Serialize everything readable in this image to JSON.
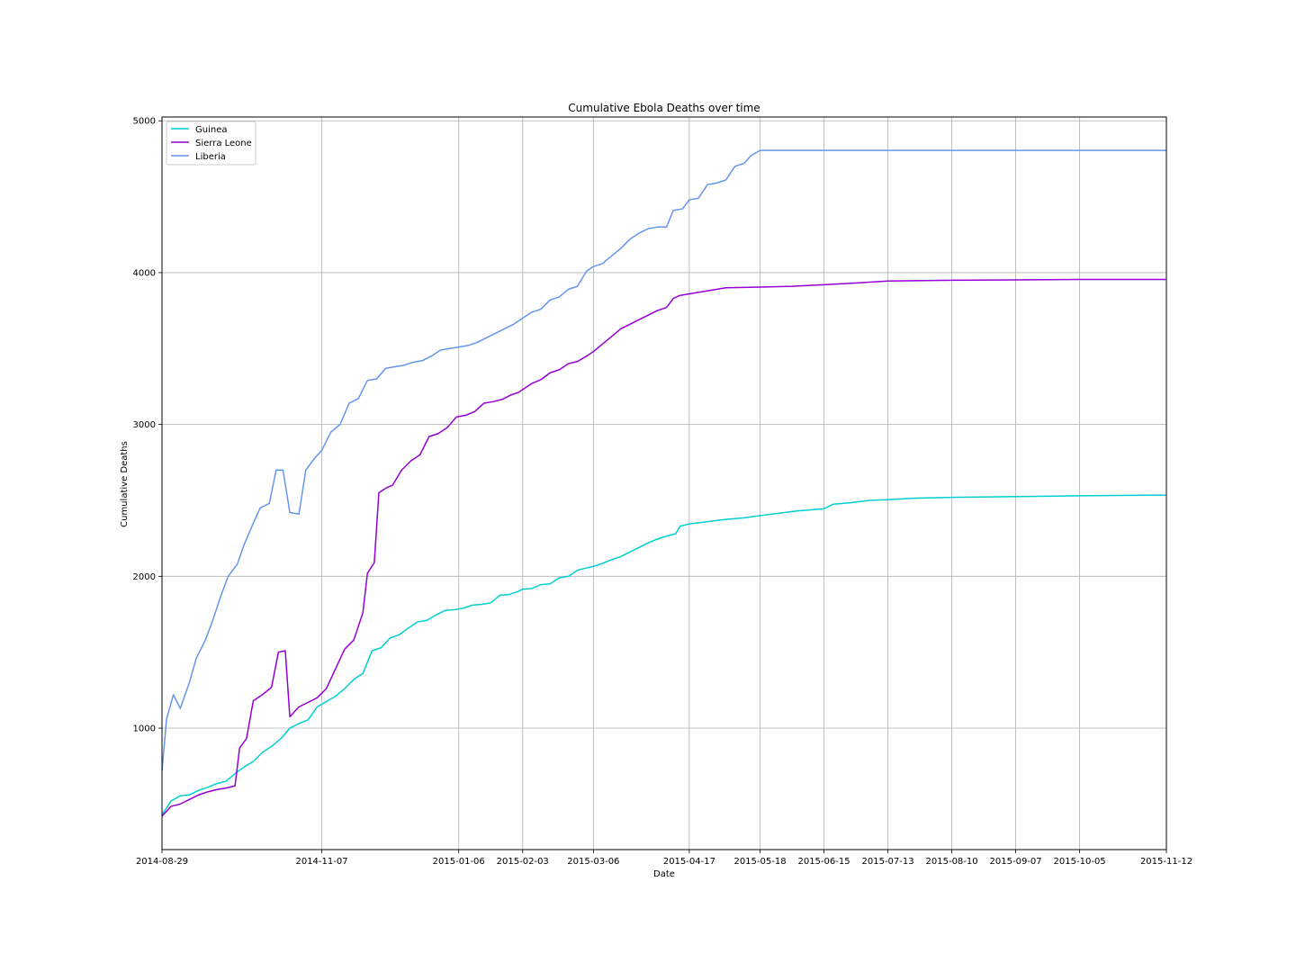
{
  "chart_data": {
    "type": "line",
    "title": "Cumulative Ebola Deaths over time",
    "xlabel": "Date",
    "ylabel": "Cumulative Deaths",
    "x_ticks": [
      "2014-08-29",
      "2014-11-07",
      "2015-01-06",
      "2015-02-03",
      "2015-03-06",
      "2015-04-17",
      "2015-05-18",
      "2015-06-15",
      "2015-07-13",
      "2015-08-10",
      "2015-09-07",
      "2015-10-05",
      "2015-11-12"
    ],
    "y_ticks": [
      1000,
      2000,
      3000,
      4000,
      5000
    ],
    "xlim": [
      "2014-08-29",
      "2015-11-12"
    ],
    "ylim": [
      200,
      5025
    ],
    "grid": true,
    "legend_position": "upper-left",
    "series": [
      {
        "name": "Guinea",
        "color": "#00CED1",
        "points": [
          [
            "2014-08-29",
            430
          ],
          [
            "2014-09-02",
            520
          ],
          [
            "2014-09-06",
            555
          ],
          [
            "2014-09-10",
            560
          ],
          [
            "2014-09-14",
            590
          ],
          [
            "2014-09-18",
            610
          ],
          [
            "2014-09-22",
            635
          ],
          [
            "2014-09-26",
            650
          ],
          [
            "2014-09-30",
            700
          ],
          [
            "2014-10-04",
            745
          ],
          [
            "2014-10-08",
            780
          ],
          [
            "2014-10-12",
            840
          ],
          [
            "2014-10-16",
            880
          ],
          [
            "2014-10-20",
            930
          ],
          [
            "2014-10-24",
            1000
          ],
          [
            "2014-10-28",
            1030
          ],
          [
            "2014-11-01",
            1055
          ],
          [
            "2014-11-05",
            1140
          ],
          [
            "2014-11-09",
            1175
          ],
          [
            "2014-11-13",
            1210
          ],
          [
            "2014-11-17",
            1260
          ],
          [
            "2014-11-21",
            1320
          ],
          [
            "2014-11-25",
            1360
          ],
          [
            "2014-11-29",
            1510
          ],
          [
            "2014-12-03",
            1530
          ],
          [
            "2014-12-07",
            1595
          ],
          [
            "2014-12-11",
            1615
          ],
          [
            "2014-12-15",
            1660
          ],
          [
            "2014-12-19",
            1700
          ],
          [
            "2014-12-23",
            1710
          ],
          [
            "2014-12-27",
            1745
          ],
          [
            "2014-12-31",
            1775
          ],
          [
            "2015-01-04",
            1780
          ],
          [
            "2015-01-08",
            1790
          ],
          [
            "2015-01-12",
            1810
          ],
          [
            "2015-01-16",
            1815
          ],
          [
            "2015-01-20",
            1825
          ],
          [
            "2015-01-24",
            1875
          ],
          [
            "2015-01-28",
            1880
          ],
          [
            "2015-02-01",
            1900
          ],
          [
            "2015-02-03",
            1915
          ],
          [
            "2015-02-07",
            1920
          ],
          [
            "2015-02-11",
            1945
          ],
          [
            "2015-02-15",
            1950
          ],
          [
            "2015-02-19",
            1990
          ],
          [
            "2015-02-23",
            2000
          ],
          [
            "2015-02-27",
            2040
          ],
          [
            "2015-03-03",
            2055
          ],
          [
            "2015-03-06",
            2065
          ],
          [
            "2015-03-10",
            2085
          ],
          [
            "2015-03-14",
            2110
          ],
          [
            "2015-03-18",
            2130
          ],
          [
            "2015-03-22",
            2160
          ],
          [
            "2015-03-26",
            2190
          ],
          [
            "2015-03-30",
            2220
          ],
          [
            "2015-04-03",
            2245
          ],
          [
            "2015-04-07",
            2265
          ],
          [
            "2015-04-11",
            2280
          ],
          [
            "2015-04-13",
            2330
          ],
          [
            "2015-04-17",
            2345
          ],
          [
            "2015-04-25",
            2360
          ],
          [
            "2015-05-03",
            2375
          ],
          [
            "2015-05-11",
            2385
          ],
          [
            "2015-05-18",
            2400
          ],
          [
            "2015-05-26",
            2415
          ],
          [
            "2015-06-03",
            2430
          ],
          [
            "2015-06-11",
            2440
          ],
          [
            "2015-06-15",
            2445
          ],
          [
            "2015-06-19",
            2475
          ],
          [
            "2015-06-27",
            2485
          ],
          [
            "2015-07-05",
            2500
          ],
          [
            "2015-07-13",
            2505
          ],
          [
            "2015-07-25",
            2515
          ],
          [
            "2015-08-10",
            2520
          ],
          [
            "2015-09-07",
            2525
          ],
          [
            "2015-10-05",
            2530
          ],
          [
            "2015-11-12",
            2535
          ]
        ]
      },
      {
        "name": "Sierra Leone",
        "color": "#9400D3",
        "points": [
          [
            "2014-08-29",
            420
          ],
          [
            "2014-09-02",
            485
          ],
          [
            "2014-09-06",
            500
          ],
          [
            "2014-09-10",
            530
          ],
          [
            "2014-09-14",
            560
          ],
          [
            "2014-09-18",
            580
          ],
          [
            "2014-09-22",
            595
          ],
          [
            "2014-09-26",
            605
          ],
          [
            "2014-09-30",
            620
          ],
          [
            "2014-10-02",
            870
          ],
          [
            "2014-10-05",
            930
          ],
          [
            "2014-10-08",
            1180
          ],
          [
            "2014-10-12",
            1220
          ],
          [
            "2014-10-16",
            1270
          ],
          [
            "2014-10-19",
            1500
          ],
          [
            "2014-10-22",
            1510
          ],
          [
            "2014-10-24",
            1075
          ],
          [
            "2014-10-28",
            1140
          ],
          [
            "2014-11-01",
            1170
          ],
          [
            "2014-11-05",
            1200
          ],
          [
            "2014-11-09",
            1260
          ],
          [
            "2014-11-13",
            1390
          ],
          [
            "2014-11-17",
            1520
          ],
          [
            "2014-11-21",
            1580
          ],
          [
            "2014-11-25",
            1760
          ],
          [
            "2014-11-27",
            2020
          ],
          [
            "2014-11-30",
            2090
          ],
          [
            "2014-12-02",
            2550
          ],
          [
            "2014-12-05",
            2580
          ],
          [
            "2014-12-08",
            2600
          ],
          [
            "2014-12-12",
            2700
          ],
          [
            "2014-12-16",
            2760
          ],
          [
            "2014-12-20",
            2800
          ],
          [
            "2014-12-24",
            2920
          ],
          [
            "2014-12-28",
            2940
          ],
          [
            "2015-01-01",
            2980
          ],
          [
            "2015-01-05",
            3050
          ],
          [
            "2015-01-09",
            3060
          ],
          [
            "2015-01-13",
            3085
          ],
          [
            "2015-01-17",
            3140
          ],
          [
            "2015-01-21",
            3150
          ],
          [
            "2015-01-25",
            3165
          ],
          [
            "2015-01-29",
            3195
          ],
          [
            "2015-02-01",
            3210
          ],
          [
            "2015-02-03",
            3230
          ],
          [
            "2015-02-07",
            3270
          ],
          [
            "2015-02-11",
            3295
          ],
          [
            "2015-02-15",
            3340
          ],
          [
            "2015-02-19",
            3360
          ],
          [
            "2015-02-23",
            3400
          ],
          [
            "2015-02-27",
            3415
          ],
          [
            "2015-03-03",
            3450
          ],
          [
            "2015-03-06",
            3480
          ],
          [
            "2015-03-10",
            3530
          ],
          [
            "2015-03-14",
            3580
          ],
          [
            "2015-03-18",
            3630
          ],
          [
            "2015-03-22",
            3660
          ],
          [
            "2015-03-26",
            3690
          ],
          [
            "2015-03-30",
            3720
          ],
          [
            "2015-04-03",
            3750
          ],
          [
            "2015-04-07",
            3770
          ],
          [
            "2015-04-10",
            3830
          ],
          [
            "2015-04-13",
            3850
          ],
          [
            "2015-04-17",
            3860
          ],
          [
            "2015-04-25",
            3880
          ],
          [
            "2015-05-03",
            3900
          ],
          [
            "2015-05-18",
            3905
          ],
          [
            "2015-06-01",
            3910
          ],
          [
            "2015-06-15",
            3920
          ],
          [
            "2015-06-27",
            3930
          ],
          [
            "2015-07-13",
            3945
          ],
          [
            "2015-08-10",
            3950
          ],
          [
            "2015-09-07",
            3952
          ],
          [
            "2015-10-05",
            3955
          ],
          [
            "2015-11-12",
            3955
          ]
        ]
      },
      {
        "name": "Liberia",
        "color": "#6495ED",
        "points": [
          [
            "2014-08-29",
            720
          ],
          [
            "2014-08-31",
            1060
          ],
          [
            "2014-09-03",
            1220
          ],
          [
            "2014-09-06",
            1130
          ],
          [
            "2014-09-10",
            1300
          ],
          [
            "2014-09-13",
            1460
          ],
          [
            "2014-09-17",
            1580
          ],
          [
            "2014-09-20",
            1700
          ],
          [
            "2014-09-24",
            1880
          ],
          [
            "2014-09-27",
            2000
          ],
          [
            "2014-10-01",
            2080
          ],
          [
            "2014-10-04",
            2210
          ],
          [
            "2014-10-08",
            2350
          ],
          [
            "2014-10-11",
            2450
          ],
          [
            "2014-10-15",
            2480
          ],
          [
            "2014-10-18",
            2700
          ],
          [
            "2014-10-21",
            2700
          ],
          [
            "2014-10-24",
            2420
          ],
          [
            "2014-10-28",
            2410
          ],
          [
            "2014-10-31",
            2700
          ],
          [
            "2014-11-04",
            2780
          ],
          [
            "2014-11-07",
            2830
          ],
          [
            "2014-11-11",
            2950
          ],
          [
            "2014-11-15",
            3000
          ],
          [
            "2014-11-19",
            3140
          ],
          [
            "2014-11-23",
            3170
          ],
          [
            "2014-11-27",
            3290
          ],
          [
            "2014-12-01",
            3300
          ],
          [
            "2014-12-05",
            3370
          ],
          [
            "2014-12-09",
            3380
          ],
          [
            "2014-12-13",
            3390
          ],
          [
            "2014-12-17",
            3410
          ],
          [
            "2014-12-21",
            3420
          ],
          [
            "2014-12-25",
            3450
          ],
          [
            "2014-12-29",
            3490
          ],
          [
            "2015-01-02",
            3500
          ],
          [
            "2015-01-06",
            3510
          ],
          [
            "2015-01-10",
            3520
          ],
          [
            "2015-01-14",
            3540
          ],
          [
            "2015-01-18",
            3570
          ],
          [
            "2015-01-22",
            3600
          ],
          [
            "2015-01-26",
            3630
          ],
          [
            "2015-01-30",
            3660
          ],
          [
            "2015-02-03",
            3700
          ],
          [
            "2015-02-07",
            3740
          ],
          [
            "2015-02-11",
            3760
          ],
          [
            "2015-02-15",
            3820
          ],
          [
            "2015-02-19",
            3840
          ],
          [
            "2015-02-23",
            3890
          ],
          [
            "2015-02-27",
            3910
          ],
          [
            "2015-03-03",
            4010
          ],
          [
            "2015-03-06",
            4040
          ],
          [
            "2015-03-10",
            4060
          ],
          [
            "2015-03-14",
            4110
          ],
          [
            "2015-03-18",
            4160
          ],
          [
            "2015-03-22",
            4220
          ],
          [
            "2015-03-26",
            4260
          ],
          [
            "2015-03-30",
            4290
          ],
          [
            "2015-04-03",
            4300
          ],
          [
            "2015-04-07",
            4300
          ],
          [
            "2015-04-10",
            4410
          ],
          [
            "2015-04-14",
            4420
          ],
          [
            "2015-04-17",
            4480
          ],
          [
            "2015-04-21",
            4490
          ],
          [
            "2015-04-25",
            4580
          ],
          [
            "2015-04-29",
            4590
          ],
          [
            "2015-05-03",
            4610
          ],
          [
            "2015-05-07",
            4700
          ],
          [
            "2015-05-11",
            4720
          ],
          [
            "2015-05-14",
            4770
          ],
          [
            "2015-05-18",
            4805
          ],
          [
            "2015-11-12",
            4805
          ]
        ]
      }
    ]
  }
}
